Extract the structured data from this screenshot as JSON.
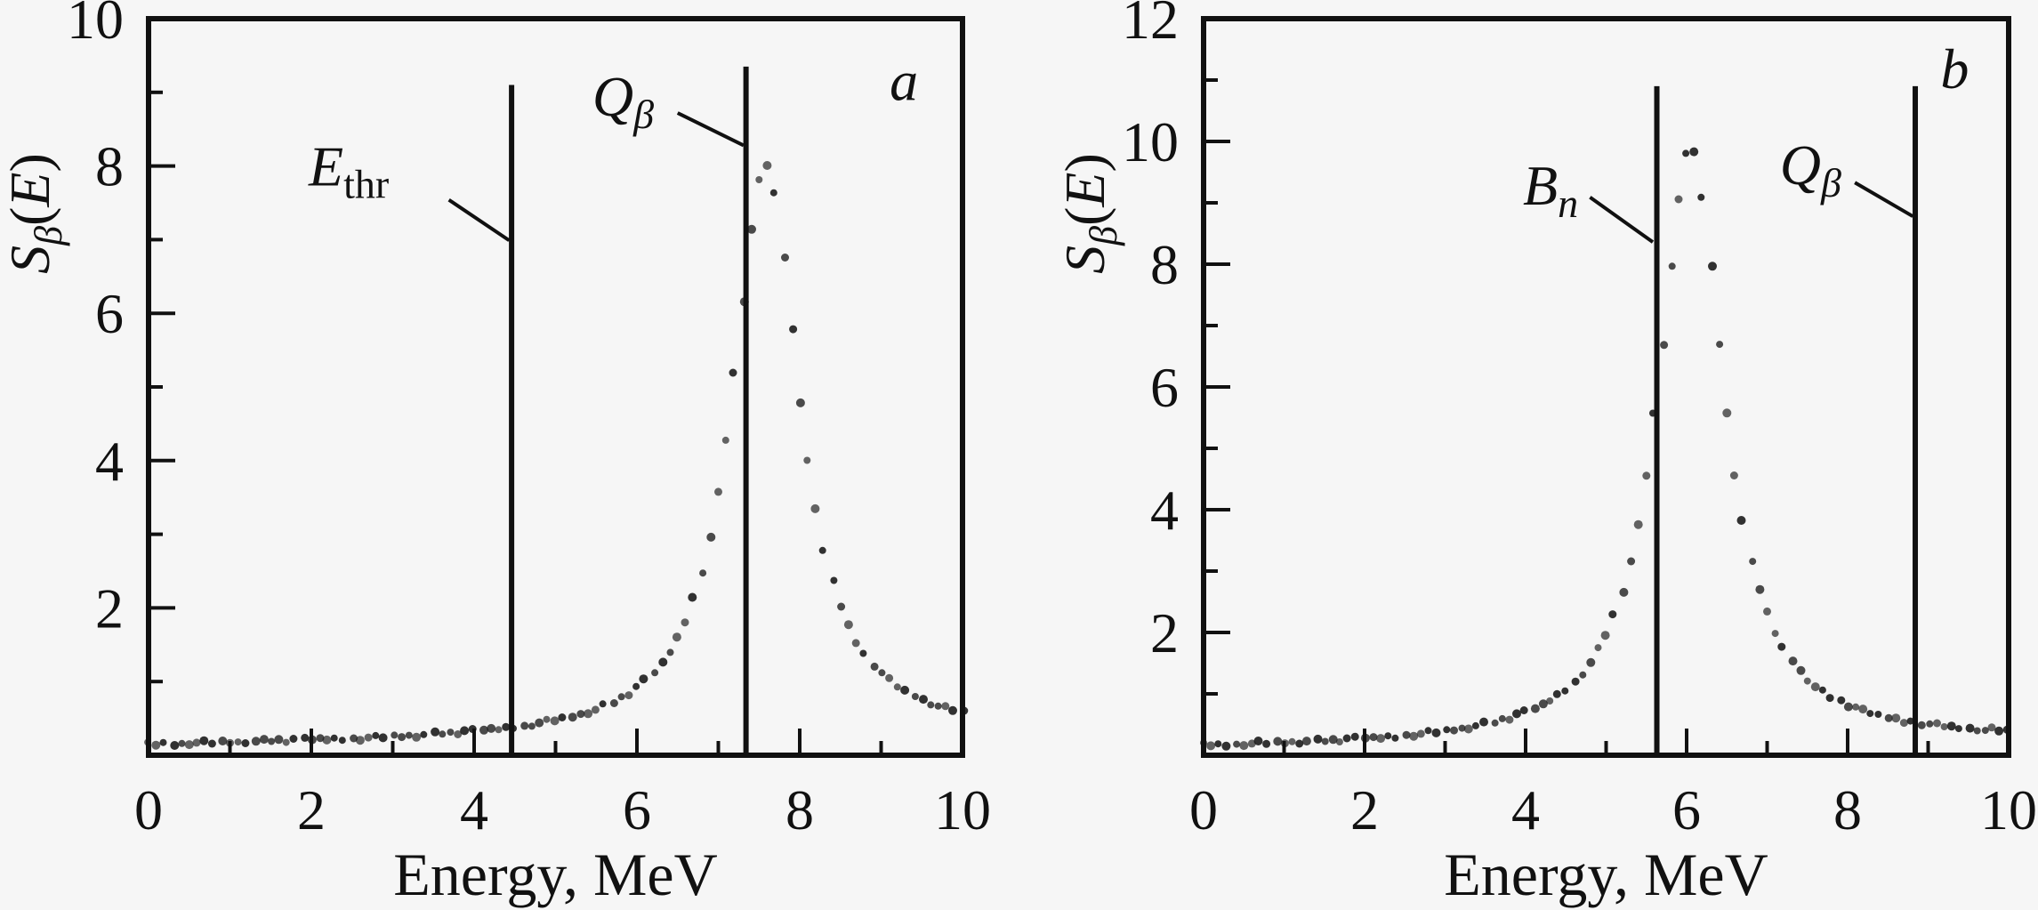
{
  "figure": {
    "background": "#f6f6f6",
    "ink": "#111111",
    "dot_color": "#1c1c1c"
  },
  "chart_data": [
    {
      "id": "a",
      "type": "scatter",
      "panel_label": "a",
      "xlabel": "Energy, MeV",
      "ylabel": "S_beta(E)",
      "ylabel_parts": [
        {
          "t": "S",
          "s": "i"
        },
        {
          "t": "β",
          "s": "is"
        },
        {
          "t": "(",
          "s": "r"
        },
        {
          "t": "E",
          "s": "i"
        },
        {
          "t": ")",
          "s": "r"
        }
      ],
      "xlim": [
        0,
        10
      ],
      "ylim": [
        0,
        10
      ],
      "xticks_labeled": [
        0,
        2,
        4,
        6,
        8,
        10
      ],
      "xticks_minor": [
        1,
        3,
        5,
        7,
        9
      ],
      "yticks_labeled": [
        2,
        4,
        6,
        8,
        10
      ],
      "yticks_minor": [
        1,
        3,
        5,
        7,
        9
      ],
      "grid": false,
      "points": {
        "x_start": 0,
        "x_step": 0.1,
        "y": [
          0.15,
          0.15,
          0.16,
          0.16,
          0.16,
          0.17,
          0.17,
          0.17,
          0.17,
          0.18,
          0.18,
          0.18,
          0.19,
          0.19,
          0.19,
          0.2,
          0.2,
          0.2,
          0.21,
          0.21,
          0.21,
          0.22,
          0.22,
          0.22,
          0.23,
          0.23,
          0.23,
          0.24,
          0.24,
          0.25,
          0.26,
          0.26,
          0.27,
          0.27,
          0.28,
          0.29,
          0.3,
          0.3,
          0.31,
          0.32,
          0.33,
          0.34,
          0.35,
          0.36,
          0.37,
          0.39,
          0.4,
          0.42,
          0.44,
          0.46,
          0.48,
          0.5,
          0.53,
          0.56,
          0.59,
          0.63,
          0.67,
          0.72,
          0.78,
          0.84,
          0.92,
          1.01,
          1.12,
          1.25,
          1.41,
          1.59,
          1.83,
          2.13,
          2.5,
          2.96,
          3.55,
          4.29,
          5.18,
          6.17,
          7.14,
          7.84,
          8.02,
          7.61,
          6.77,
          5.77,
          4.81,
          3.99,
          3.32,
          2.78,
          2.36,
          2.03,
          1.76,
          1.55,
          1.37,
          1.23,
          1.12,
          1.02,
          0.94,
          0.87,
          0.81,
          0.76,
          0.71,
          0.68,
          0.64,
          0.62,
          0.59
        ]
      },
      "peak": {
        "x": 7.6,
        "y": 8.0
      },
      "marker_lines": [
        {
          "name": "E_thr",
          "main": "E",
          "sub": "thr",
          "sub_style": "roman",
          "x": 4.46,
          "y_top": 9.1,
          "label_x": 2.46,
          "label_y": 8.0,
          "pointer": [
            3.69,
            7.54,
            4.43,
            6.99
          ]
        },
        {
          "name": "Q_beta",
          "main": "Q",
          "sub": "β",
          "sub_style": "italic",
          "x": 7.34,
          "y_top": 9.35,
          "label_x": 5.83,
          "label_y": 8.95,
          "pointer": [
            6.5,
            8.72,
            7.31,
            8.28
          ]
        }
      ],
      "corner_label": {
        "text": "a",
        "x": 9.28,
        "y": 9.16
      }
    },
    {
      "id": "b",
      "type": "scatter",
      "panel_label": "b",
      "xlabel": "Energy, MeV",
      "ylabel": "S_beta(E)",
      "ylabel_parts": [
        {
          "t": "S",
          "s": "i"
        },
        {
          "t": "β",
          "s": "is"
        },
        {
          "t": "(",
          "s": "r"
        },
        {
          "t": "E",
          "s": "i"
        },
        {
          "t": ")",
          "s": "r"
        }
      ],
      "xlim": [
        0,
        10
      ],
      "ylim": [
        0,
        12
      ],
      "xticks_labeled": [
        0,
        2,
        4,
        6,
        8,
        10
      ],
      "xticks_minor": [
        1,
        3,
        5,
        7,
        9
      ],
      "yticks_labeled": [
        2,
        4,
        6,
        8,
        10,
        12
      ],
      "yticks_minor": [
        1,
        3,
        5,
        7,
        9,
        11
      ],
      "grid": false,
      "points": {
        "x_start": 0,
        "x_step": 0.1,
        "y": [
          0.17,
          0.17,
          0.17,
          0.18,
          0.18,
          0.19,
          0.19,
          0.2,
          0.2,
          0.21,
          0.21,
          0.22,
          0.22,
          0.23,
          0.23,
          0.24,
          0.24,
          0.25,
          0.26,
          0.27,
          0.28,
          0.28,
          0.29,
          0.3,
          0.31,
          0.33,
          0.34,
          0.35,
          0.37,
          0.38,
          0.4,
          0.42,
          0.44,
          0.46,
          0.48,
          0.51,
          0.54,
          0.58,
          0.61,
          0.66,
          0.7,
          0.76,
          0.82,
          0.9,
          0.98,
          1.08,
          1.2,
          1.34,
          1.51,
          1.72,
          1.97,
          2.28,
          2.67,
          3.16,
          3.79,
          4.57,
          5.54,
          6.7,
          7.95,
          9.09,
          9.79,
          9.8,
          9.09,
          7.95,
          6.71,
          5.56,
          4.59,
          3.81,
          3.19,
          2.7,
          2.31,
          2.0,
          1.75,
          1.55,
          1.38,
          1.24,
          1.13,
          1.03,
          0.95,
          0.88,
          0.82,
          0.77,
          0.72,
          0.68,
          0.65,
          0.62,
          0.59,
          0.56,
          0.54,
          0.52,
          0.51,
          0.49,
          0.48,
          0.46,
          0.45,
          0.44,
          0.43,
          0.42,
          0.42,
          0.41,
          0.4
        ]
      },
      "peak": {
        "x": 6.05,
        "y": 10.0
      },
      "marker_lines": [
        {
          "name": "B_n",
          "main": "B",
          "sub": "n",
          "sub_style": "italic",
          "x": 5.63,
          "y_top": 10.9,
          "label_x": 4.31,
          "label_y": 9.29,
          "pointer": [
            4.8,
            9.09,
            5.58,
            8.36
          ]
        },
        {
          "name": "Q_beta",
          "main": "Q",
          "sub": "β",
          "sub_style": "italic",
          "x": 8.84,
          "y_top": 10.9,
          "label_x": 7.54,
          "label_y": 9.62,
          "pointer": [
            8.09,
            9.33,
            8.81,
            8.78
          ]
        }
      ],
      "corner_label": {
        "text": "b",
        "x": 9.33,
        "y": 11.19
      }
    }
  ]
}
